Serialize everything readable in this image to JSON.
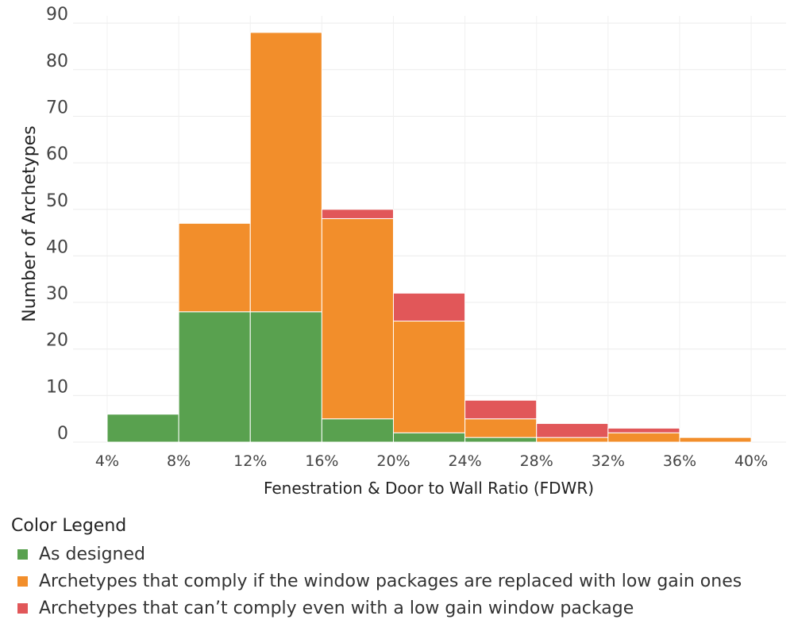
{
  "colors": {
    "as_designed": "#59a14f",
    "low_gain": "#f28e2b",
    "cannot_comply": "#e15759"
  },
  "legend": {
    "title": "Color Legend",
    "items": [
      {
        "label": "As designed",
        "color": "#59a14f"
      },
      {
        "label": "Archetypes that comply if the window packages are replaced with low gain ones",
        "color": "#f28e2b"
      },
      {
        "label": "Archetypes that can’t comply even with a low gain window package",
        "color": "#e15759"
      }
    ]
  },
  "chart_data": {
    "type": "bar",
    "stacked": true,
    "title": "",
    "xlabel": "Fenestration & Door to Wall Ratio (FDWR)",
    "ylabel": "Number of Archetypes",
    "x_ticks": [
      "4%",
      "8%",
      "12%",
      "16%",
      "20%",
      "24%",
      "28%",
      "32%",
      "36%",
      "40%"
    ],
    "y_ticks": [
      "0",
      "10",
      "20",
      "30",
      "40",
      "50",
      "60",
      "70",
      "80",
      "90"
    ],
    "ylim": [
      0,
      90
    ],
    "bins": [
      [
        4,
        8
      ],
      [
        8,
        12
      ],
      [
        12,
        16
      ],
      [
        16,
        20
      ],
      [
        20,
        24
      ],
      [
        24,
        28
      ],
      [
        28,
        32
      ],
      [
        32,
        36
      ],
      [
        36,
        40
      ]
    ],
    "series": [
      {
        "name": "As designed",
        "values": [
          6,
          28,
          28,
          5,
          2,
          1,
          0,
          0,
          0
        ]
      },
      {
        "name": "Archetypes that comply if the window packages are replaced with low gain ones",
        "values": [
          0,
          19,
          60,
          43,
          24,
          4,
          1,
          2,
          1
        ]
      },
      {
        "name": "Archetypes that can’t comply even with a low gain window package",
        "values": [
          0,
          0,
          0,
          2,
          6,
          4,
          3,
          1,
          0
        ]
      }
    ],
    "grid": true,
    "legend_position": "bottom-left"
  }
}
